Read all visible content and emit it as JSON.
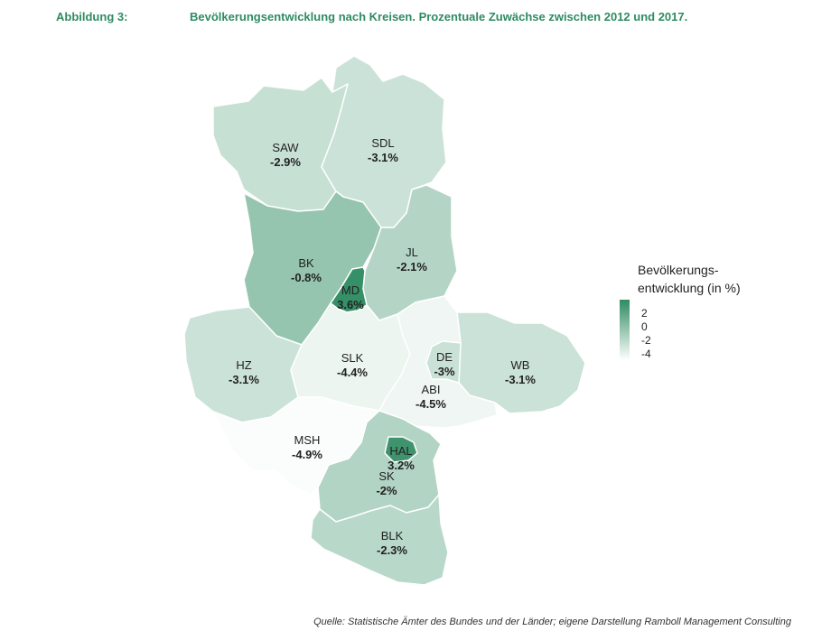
{
  "header": {
    "figure_label": "Abbildung 3:",
    "title": "Bevölkerungsentwicklung nach Kreisen. Prozentuale Zuwächse zwischen 2012 und 2017."
  },
  "source": "Quelle: Statistische Ämter des Bundes und der Länder; eigene Darstellung Ramboll Management Consulting",
  "colors": {
    "scale_low": "#ffffff",
    "scale_high": "#2e8b61",
    "border": "#ffffff"
  },
  "legend": {
    "title_line1": "Bevölkerungs-",
    "title_line2": "entwicklung (in %)",
    "min": -5,
    "max": 4,
    "ticks": [
      {
        "label": "2",
        "value": 2
      },
      {
        "label": "0",
        "value": 0
      },
      {
        "label": "-2",
        "value": -2
      },
      {
        "label": "-4",
        "value": -4
      }
    ]
  },
  "districts": [
    {
      "id": "saw",
      "name": "SAW",
      "value": -2.9,
      "label": "-2.9%"
    },
    {
      "id": "sdl",
      "name": "SDL",
      "value": -3.1,
      "label": "-3.1%"
    },
    {
      "id": "bk",
      "name": "BK",
      "value": -0.8,
      "label": "-0.8%"
    },
    {
      "id": "jl",
      "name": "JL",
      "value": -2.1,
      "label": "-2.1%"
    },
    {
      "id": "md",
      "name": "MD",
      "value": 3.6,
      "label": "3.6%"
    },
    {
      "id": "hz",
      "name": "HZ",
      "value": -3.1,
      "label": "-3.1%"
    },
    {
      "id": "slk",
      "name": "SLK",
      "value": -4.4,
      "label": "-4.4%"
    },
    {
      "id": "de",
      "name": "DE",
      "value": -3,
      "label": "-3%"
    },
    {
      "id": "wb",
      "name": "WB",
      "value": -3.1,
      "label": "-3.1%"
    },
    {
      "id": "abi",
      "name": "ABI",
      "value": -4.5,
      "label": "-4.5%"
    },
    {
      "id": "msh",
      "name": "MSH",
      "value": -4.9,
      "label": "-4.9%"
    },
    {
      "id": "hal",
      "name": "HAL",
      "value": 3.2,
      "label": "3.2%"
    },
    {
      "id": "sk",
      "name": "SK",
      "value": -2,
      "label": "-2%"
    },
    {
      "id": "blk",
      "name": "BLK",
      "value": -2.3,
      "label": "-2.3%"
    }
  ]
}
